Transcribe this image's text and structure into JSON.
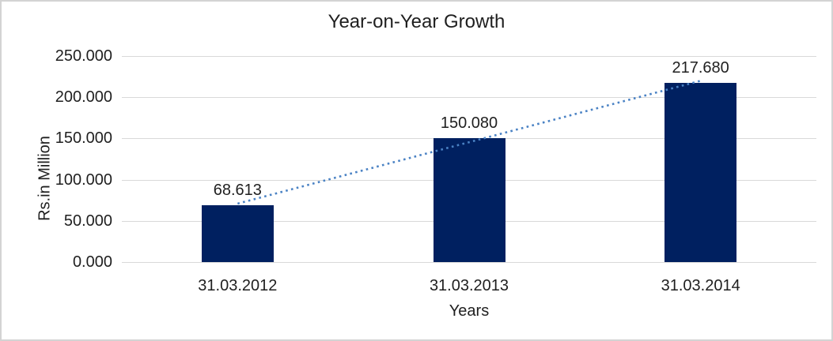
{
  "frame": {
    "background": "#ffffff",
    "border_color": "#d3d3d3"
  },
  "chart_data": {
    "type": "bar",
    "title": "Year-on-Year Growth",
    "xlabel": "Years",
    "ylabel": "Rs.in Million",
    "categories": [
      "31.03.2012",
      "31.03.2013",
      "31.03.2014"
    ],
    "values": [
      68.613,
      150.08,
      217.68
    ],
    "value_labels": [
      "68.613",
      "150.080",
      "217.680"
    ],
    "ylim": [
      0,
      250
    ],
    "y_ticks": [
      {
        "value": 0,
        "label": "0.000"
      },
      {
        "value": 50,
        "label": "50.000"
      },
      {
        "value": 100,
        "label": "100.000"
      },
      {
        "value": 150,
        "label": "150.000"
      },
      {
        "value": 200,
        "label": "200.000"
      },
      {
        "value": 250,
        "label": "250.000"
      }
    ],
    "grid": true,
    "legend": false,
    "bar_color": "#002060",
    "gridline_color": "#d9d9d9",
    "text_color": "#1f1f1f",
    "trendline": {
      "type": "linear",
      "style": "dotted",
      "color": "#4a82c4"
    }
  }
}
